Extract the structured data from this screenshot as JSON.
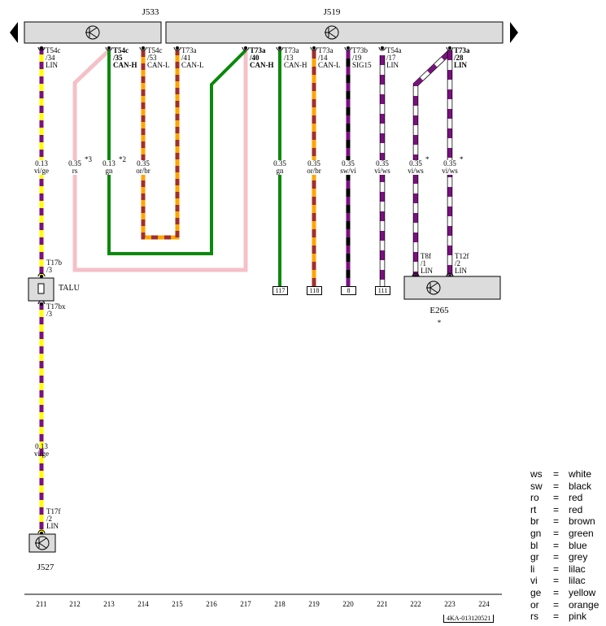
{
  "components": {
    "j533": "J533",
    "j519": "J519",
    "talu": "TALU",
    "e265": "E265",
    "e265_note": "*",
    "j527": "J527"
  },
  "pins": [
    {
      "id": "t54c-34",
      "lines": [
        "T54c",
        "/34",
        "LIN"
      ],
      "bold": false
    },
    {
      "id": "t54c-35",
      "lines": [
        "T54c",
        "/35",
        "CAN-H"
      ],
      "bold": true
    },
    {
      "id": "t54c-53",
      "lines": [
        "T54c",
        "/53",
        "CAN-L"
      ],
      "bold": false
    },
    {
      "id": "t73a-41",
      "lines": [
        "T73a",
        "/41",
        "CAN-L"
      ],
      "bold": false
    },
    {
      "id": "t73a-40",
      "lines": [
        "T73a",
        "/40",
        "CAN-H"
      ],
      "bold": true
    },
    {
      "id": "t73a-13",
      "lines": [
        "T73a",
        "/13",
        "CAN-H"
      ],
      "bold": false
    },
    {
      "id": "t73a-14",
      "lines": [
        "T73a",
        "/14",
        "CAN-L"
      ],
      "bold": false
    },
    {
      "id": "t73b-19",
      "lines": [
        "T73b",
        "/19",
        "SIG15"
      ],
      "bold": false
    },
    {
      "id": "t54a-17",
      "lines": [
        "T54a",
        "/17",
        "LIN"
      ],
      "bold": false
    },
    {
      "id": "t73a-28",
      "lines": [
        "T73a",
        "/28",
        "LIN"
      ],
      "bold": true
    }
  ],
  "lower_pins": {
    "t17b": [
      "T17b",
      "/3"
    ],
    "t17bx": [
      "T17bx",
      "/3"
    ],
    "t17f": [
      "T17f",
      "/2",
      "LIN"
    ],
    "t8f": [
      "T8f",
      "/1",
      "LIN"
    ],
    "t12f": [
      "T12f",
      "/2",
      "LIN"
    ]
  },
  "wire_labels": [
    {
      "size": "0.13",
      "color": "vi/ge",
      "note": ""
    },
    {
      "size": "0.35",
      "color": "rs",
      "note": "*3"
    },
    {
      "size": "0.13",
      "color": "gn",
      "note": "*2"
    },
    {
      "size": "0.35",
      "color": "or/br",
      "note": ""
    },
    {
      "size": "0.35",
      "color": "gn",
      "note": ""
    },
    {
      "size": "0.35",
      "color": "or/br",
      "note": ""
    },
    {
      "size": "0.35",
      "color": "sw/vi",
      "note": ""
    },
    {
      "size": "0.35",
      "color": "vi/ws",
      "note": ""
    },
    {
      "size": "0.35",
      "color": "vi/ws",
      "note": "*"
    },
    {
      "size": "0.35",
      "color": "vi/ws",
      "note": "*"
    }
  ],
  "lower_wire_label": {
    "size": "0.13",
    "color": "vi/ge"
  },
  "references": [
    "117",
    "118",
    "8",
    "111"
  ],
  "columns": [
    "211",
    "212",
    "213",
    "214",
    "215",
    "216",
    "217",
    "218",
    "219",
    "220",
    "221",
    "222",
    "223",
    "224"
  ],
  "document_code": "4KA-013120521",
  "legend": [
    {
      "code": "ws",
      "name": "white"
    },
    {
      "code": "sw",
      "name": "black"
    },
    {
      "code": "ro",
      "name": "red"
    },
    {
      "code": "rt",
      "name": "red"
    },
    {
      "code": "br",
      "name": "brown"
    },
    {
      "code": "gn",
      "name": "green"
    },
    {
      "code": "bl",
      "name": "blue"
    },
    {
      "code": "gr",
      "name": "grey"
    },
    {
      "code": "li",
      "name": "lilac"
    },
    {
      "code": "vi",
      "name": "lilac"
    },
    {
      "code": "ge",
      "name": "yellow"
    },
    {
      "code": "or",
      "name": "orange"
    },
    {
      "code": "rs",
      "name": "pink"
    }
  ],
  "legend_sep": "=",
  "colors": {
    "vi": "#7b1080",
    "ge": "#ffff00",
    "gn": "#0a8a0a",
    "rs": "#f5c0c8",
    "or": "#ffa500",
    "br": "#a0302a",
    "sw": "#000000",
    "ws": "#ffffff",
    "bar": "#dcdcdc"
  }
}
